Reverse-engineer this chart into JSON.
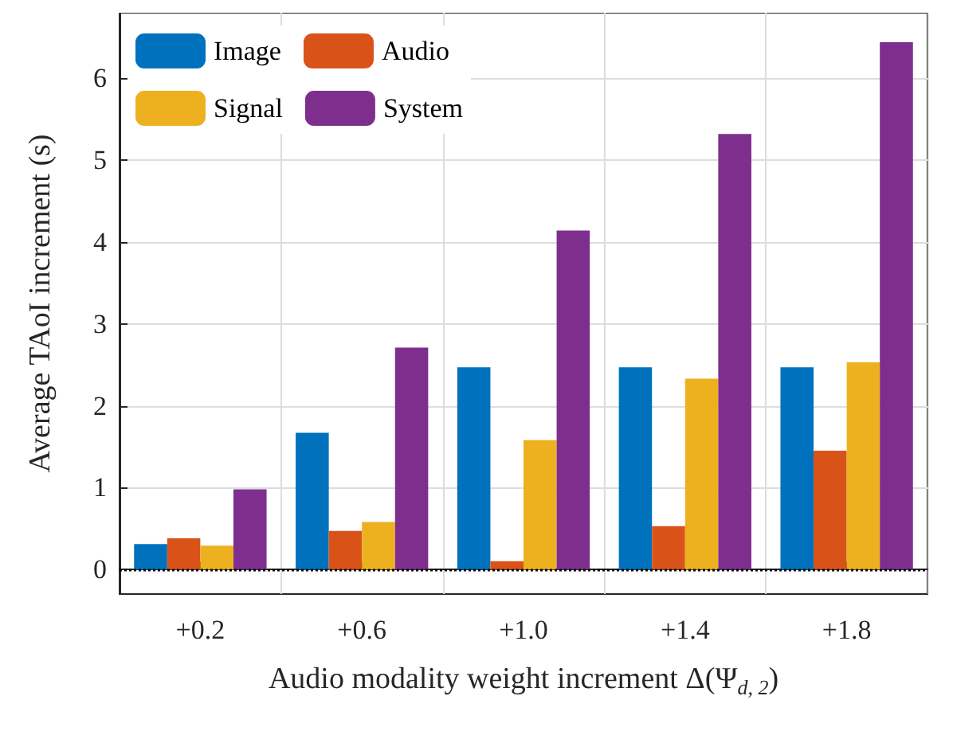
{
  "chart_data": {
    "type": "bar",
    "xlabel": "Audio modality weight increment Δ(Ψ$_{d, 2}$)",
    "ylabel": "Average TAoI increment (s)",
    "categories": [
      "+0.2",
      "+0.6",
      "+1.0",
      "+1.4",
      "+1.8"
    ],
    "series": [
      {
        "name": "Image",
        "color": "#0072bd",
        "values": [
          0.31,
          1.67,
          2.47,
          2.47,
          2.47
        ]
      },
      {
        "name": "Audio",
        "color": "#d95319",
        "values": [
          0.38,
          0.47,
          0.1,
          0.53,
          1.45
        ]
      },
      {
        "name": "Signal",
        "color": "#edb120",
        "values": [
          0.29,
          0.58,
          1.58,
          2.33,
          2.53
        ]
      },
      {
        "name": "System",
        "color": "#7e2f8e",
        "values": [
          0.98,
          2.71,
          4.14,
          5.32,
          6.44
        ]
      }
    ],
    "ylim": [
      -0.3,
      6.8
    ],
    "yticks": [
      0,
      1,
      2,
      3,
      4,
      5,
      6
    ],
    "grid": true,
    "legend": "top left",
    "ref_lines": [
      {
        "axis": "y",
        "value": 0,
        "color": "#000000",
        "line_style": "dotted"
      }
    ]
  }
}
